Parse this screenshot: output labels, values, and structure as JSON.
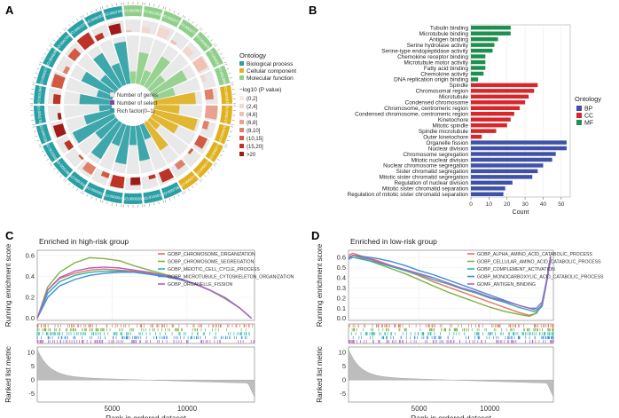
{
  "panels": {
    "a": {
      "letter": "A",
      "legend_title": "Ontology",
      "ontology_items": [
        {
          "label": "Biological process",
          "color": "#2aa0a4"
        },
        {
          "label": "Cellular component",
          "color": "#e0b11d"
        },
        {
          "label": "Molecular function",
          "color": "#8fcf8a"
        }
      ],
      "inner_legend": [
        "Number of genes",
        "Number of select",
        "Rich factor(0–1)"
      ],
      "pvalue_title": "−log10 (P value)",
      "pvalue_bins": [
        "(0,2]",
        "(2,4]",
        "(4,6]",
        "(6,8]",
        "(8,10]",
        "(10,15]",
        "(15,20]",
        ">20"
      ],
      "pvalue_colors": [
        "#f4e9e6",
        "#f2d7cf",
        "#efc1b3",
        "#e9a290",
        "#e08068",
        "#d25a45",
        "#bd3427",
        "#a01b17"
      ],
      "sector_labels": [
        "GO:0008017",
        "GO:0015631",
        "GO:0003777",
        "GO:0003774",
        "GO:0008574",
        "GO:0045505",
        "GO:0019894",
        "GO:0005819",
        "GO:0000793",
        "GO:0000794",
        "GO:0000775",
        "GO:0000776",
        "GO:0000777",
        "GO:0007059",
        "GO:0140014",
        "GO:0000280",
        "GO:0000070",
        "GO:0000819",
        "GO:0007049",
        "GO:0051983",
        "GO:0033047",
        "GO:0051306",
        "GO:0051784",
        "GO:0010965",
        "GO:0000278",
        "GO:0048285",
        "GO:0007052",
        "GO:0051225",
        "GO:0090307",
        "GO:0007051"
      ]
    },
    "b": {
      "letter": "B"
    },
    "c": {
      "letter": "C"
    },
    "d": {
      "letter": "D"
    }
  },
  "chart_data": [
    {
      "panel": "B",
      "type": "bar",
      "orientation": "horizontal",
      "xlabel": "Count",
      "xlim": [
        0,
        55
      ],
      "xticks": [
        0,
        10,
        20,
        30,
        40,
        50
      ],
      "legend_title": "Ontology",
      "legend": [
        {
          "label": "BP",
          "color": "#3f51a8"
        },
        {
          "label": "CC",
          "color": "#d8262a"
        },
        {
          "label": "MF",
          "color": "#1e8f4e"
        }
      ],
      "categories": [
        "Tubulin binding",
        "Microtubule binding",
        "Antigen binding",
        "Serine hydrolase activity",
        "Serine-type endopeptidase activity",
        "Chemokine receptor binding",
        "Microtubule motor activity",
        "Fatty acid binding",
        "Chemokine activity",
        "DNA replication origin binding",
        "Spindle",
        "Chromosomal region",
        "Microtubule",
        "Condensed chromosome",
        "Chromosome, centromeric region",
        "Condensed chromosome, centromeric region",
        "Kinetochore",
        "Mitotic spindle",
        "Spindle microtubule",
        "Outer kinetochore",
        "Organelle fission",
        "Nuclear division",
        "Chromosome segregation",
        "Mitotic nuclear division",
        "Nuclear chromosome segregation",
        "Sister chromatid segregation",
        "Mitotic sister chromatid segregation",
        "Regulation of nuclear division",
        "Mitotic sister chromatid separation",
        "Regulation of mitotic sister chromatid separation"
      ],
      "groups": [
        "MF",
        "MF",
        "MF",
        "MF",
        "MF",
        "MF",
        "MF",
        "MF",
        "MF",
        "MF",
        "CC",
        "CC",
        "CC",
        "CC",
        "CC",
        "CC",
        "CC",
        "CC",
        "CC",
        "CC",
        "BP",
        "BP",
        "BP",
        "BP",
        "BP",
        "BP",
        "BP",
        "BP",
        "BP",
        "BP"
      ],
      "values": [
        22,
        22,
        15,
        13,
        12,
        8,
        8,
        8,
        7,
        4,
        37,
        35,
        32,
        30,
        27,
        24,
        22,
        20,
        14,
        6,
        53,
        53,
        47,
        45,
        40,
        37,
        34,
        23,
        19,
        18
      ]
    },
    {
      "panel": "C",
      "type": "line",
      "title": "Enriched in high-risk group",
      "ylabel_top": "Running enrichment score",
      "ylabel_bottom": "Ranked list metric",
      "xlabel": "Rank in ordered dataset",
      "x_range": [
        0,
        14500
      ],
      "xticks": [
        5000,
        10000
      ],
      "es_ylim": [
        -0.02,
        0.65
      ],
      "es_yticks": [
        0.0,
        0.2,
        0.4,
        0.6
      ],
      "metric_ylim": [
        -8,
        12
      ],
      "metric_yticks": [
        10,
        5,
        0,
        -5
      ],
      "series": [
        {
          "name": "GOBP_CHROMOSOME_ORGANIZATION",
          "color": "#e8705c",
          "x": [
            0,
            700,
            1500,
            2500,
            3500,
            4500,
            5500,
            6500,
            7500,
            8500,
            9500,
            10500,
            11500,
            12500,
            13500,
            14300
          ],
          "values": [
            0,
            0.27,
            0.38,
            0.43,
            0.46,
            0.47,
            0.46,
            0.45,
            0.43,
            0.4,
            0.37,
            0.33,
            0.27,
            0.2,
            0.1,
            0
          ]
        },
        {
          "name": "GOBP_CHROMOSOME_SEGREGATION",
          "color": "#7cb342",
          "x": [
            0,
            700,
            1500,
            2500,
            3500,
            4500,
            5500,
            6500,
            7500,
            8500,
            9500,
            10500,
            11500,
            12500,
            13500,
            14300
          ],
          "values": [
            0,
            0.3,
            0.44,
            0.53,
            0.58,
            0.57,
            0.55,
            0.5,
            0.46,
            0.42,
            0.38,
            0.33,
            0.27,
            0.19,
            0.1,
            0
          ]
        },
        {
          "name": "GOBP_MEIOTIC_CELL_CYCLE_PROCESS",
          "color": "#26b5a6",
          "x": [
            0,
            700,
            1500,
            2500,
            3500,
            4500,
            5500,
            6500,
            7500,
            8500,
            9500,
            10500,
            11500,
            12500,
            13500,
            14300
          ],
          "values": [
            0,
            0.24,
            0.35,
            0.41,
            0.44,
            0.45,
            0.45,
            0.44,
            0.42,
            0.4,
            0.37,
            0.33,
            0.27,
            0.2,
            0.1,
            0
          ]
        },
        {
          "name": "GOBP_MICROTUBULE_CYTOSKELETON_ORGANIZATION",
          "color": "#3d8fd6",
          "x": [
            0,
            700,
            1500,
            2500,
            3500,
            4500,
            5500,
            6500,
            7500,
            8500,
            9500,
            10500,
            11500,
            12500,
            13500,
            14300
          ],
          "values": [
            0,
            0.2,
            0.31,
            0.37,
            0.41,
            0.43,
            0.44,
            0.44,
            0.42,
            0.4,
            0.37,
            0.33,
            0.27,
            0.2,
            0.1,
            0
          ]
        },
        {
          "name": "GOBP_ORGANELLE_FISSION",
          "color": "#b05fc6",
          "x": [
            0,
            700,
            1500,
            2500,
            3500,
            4500,
            5500,
            6500,
            7500,
            8500,
            9500,
            10500,
            11500,
            12500,
            13500,
            14300
          ],
          "values": [
            0,
            0.27,
            0.39,
            0.45,
            0.48,
            0.49,
            0.48,
            0.46,
            0.44,
            0.41,
            0.38,
            0.33,
            0.27,
            0.2,
            0.1,
            0
          ]
        }
      ]
    },
    {
      "panel": "D",
      "type": "line",
      "title": "Enriched in low-risk group",
      "ylabel_top": "Running enrichment score",
      "ylabel_bottom": "Ranked list metric",
      "xlabel": "Rank in ordered dataset",
      "x_range": [
        0,
        14500
      ],
      "xticks": [
        5000,
        10000
      ],
      "es_ylim": [
        -0.02,
        0.67
      ],
      "es_yticks": [
        0.0,
        0.1,
        0.2,
        0.3,
        0.4,
        0.5,
        0.6
      ],
      "metric_ylim": [
        -8,
        12
      ],
      "metric_yticks": [
        10,
        5,
        0,
        -5
      ],
      "series": [
        {
          "name": "GOBP_ALPHA_AMINO_ACID_CATABOLIC_PROCESS",
          "color": "#e8705c",
          "x": [
            0,
            300,
            1000,
            2000,
            3000,
            4000,
            5000,
            6000,
            7000,
            8000,
            9000,
            10000,
            11000,
            12000,
            12800,
            13300,
            13700,
            14000,
            14300
          ],
          "values": [
            0.62,
            0.64,
            0.61,
            0.57,
            0.52,
            0.47,
            0.42,
            0.36,
            0.31,
            0.26,
            0.21,
            0.16,
            0.11,
            0.06,
            0.03,
            0.05,
            0.14,
            0.35,
            0.62
          ]
        },
        {
          "name": "GOBP_CELLULAR_AMINO_ACID_CATABOLIC_PROCESS",
          "color": "#7cb342",
          "x": [
            0,
            300,
            1000,
            2000,
            3000,
            4000,
            5000,
            6000,
            7000,
            8000,
            9000,
            10000,
            11000,
            12000,
            12800,
            13300,
            13700,
            14000,
            14300
          ],
          "values": [
            0.6,
            0.62,
            0.59,
            0.54,
            0.49,
            0.44,
            0.38,
            0.32,
            0.26,
            0.21,
            0.16,
            0.11,
            0.07,
            0.04,
            0.02,
            0.05,
            0.14,
            0.35,
            0.6
          ]
        },
        {
          "name": "GOBP_COMPLEMENT_ACTIVATION",
          "color": "#26b5a6",
          "x": [
            0,
            300,
            1000,
            2000,
            3000,
            4000,
            5000,
            6000,
            7000,
            8000,
            9000,
            10000,
            11000,
            12000,
            12800,
            13300,
            13700,
            14000,
            14300
          ],
          "values": [
            0.58,
            0.6,
            0.58,
            0.55,
            0.51,
            0.47,
            0.43,
            0.38,
            0.34,
            0.29,
            0.25,
            0.2,
            0.16,
            0.11,
            0.08,
            0.06,
            0.12,
            0.33,
            0.58
          ]
        },
        {
          "name": "GOBP_MONOCARBOXYLIC_ACID_CATABOLIC_PROCESS",
          "color": "#3d8fd6",
          "x": [
            0,
            300,
            1000,
            2000,
            3000,
            4000,
            5000,
            6000,
            7000,
            8000,
            9000,
            10000,
            11000,
            12000,
            12800,
            13300,
            13700,
            14000,
            14300
          ],
          "values": [
            0.6,
            0.62,
            0.61,
            0.59,
            0.56,
            0.52,
            0.47,
            0.43,
            0.38,
            0.33,
            0.28,
            0.23,
            0.18,
            0.13,
            0.1,
            0.1,
            0.16,
            0.36,
            0.6
          ]
        },
        {
          "name": "GOMF_ANTIGEN_BINDING",
          "color": "#b05fc6",
          "x": [
            0,
            300,
            1000,
            2000,
            3000,
            4000,
            5000,
            6000,
            7000,
            8000,
            9000,
            10000,
            11000,
            12000,
            12800,
            13300,
            13700,
            14000,
            14300
          ],
          "values": [
            0.58,
            0.62,
            0.6,
            0.56,
            0.52,
            0.48,
            0.44,
            0.4,
            0.35,
            0.3,
            0.26,
            0.21,
            0.17,
            0.13,
            0.1,
            0.08,
            0.13,
            0.34,
            0.58
          ]
        }
      ]
    }
  ]
}
